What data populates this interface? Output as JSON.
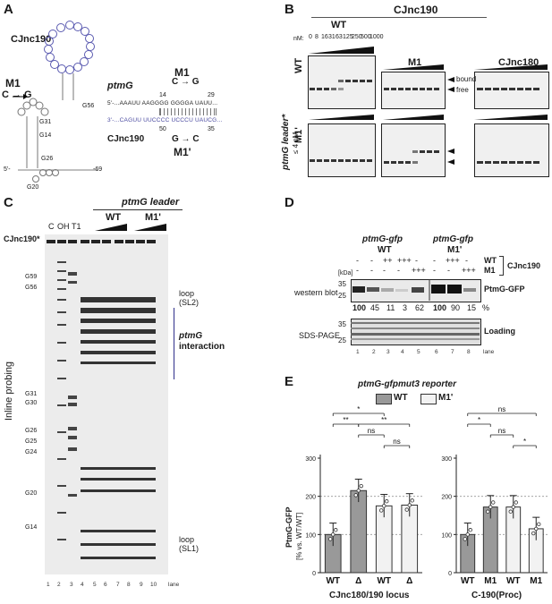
{
  "panel_a": {
    "letter": "A",
    "cjnc190_label": "CJnc190",
    "m1_label": "M1",
    "mut_arrow": "C → G",
    "g56": "G56",
    "g31": "G31",
    "g14": "G14",
    "g26": "G26",
    "g20": "G20",
    "five_prime": "5'-",
    "three_prime": "-69",
    "ptmg_label": "ptmG",
    "cjnc190_pair_label": "CJnc190",
    "ptmg_seq_top": "5'-...AAAUU AAGGGG GGGGA UAUU...",
    "cjnc190_seq_bottom": "3'-...CAGUU UUCCCC UCCCU UAUCG...",
    "pos14": "14",
    "pos29": "29",
    "pos50": "50",
    "pos35": "35",
    "m1_top": "M1",
    "m1_top_mut": "C → G",
    "m1p_bottom": "M1'",
    "m1p_bottom_mut": "G → C"
  },
  "panel_b": {
    "letter": "B",
    "title": "CJnc190",
    "wt_header": "WT",
    "m1_header": "M1",
    "cjnc180_header": "CJnc180",
    "nm_label": "nM:",
    "concentrations": [
      "0",
      "8",
      "16",
      "31",
      "63",
      "125",
      "250",
      "500",
      "1000"
    ],
    "row_wt": "WT",
    "row_m1p": "M1'",
    "side_label": "ptmG leader*",
    "side_label2": "≤ 4 nM",
    "bound": "bound",
    "free": "free"
  },
  "panel_c": {
    "letter": "C",
    "header": "ptmG leader",
    "wt": "WT",
    "m1p": "M1'",
    "probe": "CJnc190*",
    "lane_c": "C",
    "lane_oh": "OH",
    "lane_t1": "T1",
    "side": "Inline probing",
    "g59": "G59",
    "g56": "G56",
    "g31": "G31",
    "g30": "G30",
    "g26": "G26",
    "g25": "G25",
    "g24": "G24",
    "g20": "G20",
    "g14": "G14",
    "loop_sl2": "loop",
    "loop_sl2b": "(SL2)",
    "ptmg_int1": "ptmG",
    "ptmg_int2": "interaction",
    "loop_sl1": "loop",
    "loop_sl1b": "(SL1)",
    "lanes": [
      "1",
      "2",
      "3",
      "4",
      "5",
      "6",
      "7",
      "8",
      "9",
      "10"
    ],
    "lane_word": "lane"
  },
  "panel_d": {
    "letter": "D",
    "wt_title1": "ptmG-gfp",
    "wt_title2": "WT",
    "m1p_title1": "ptmG-gfp",
    "m1p_title2": "M1'",
    "kda": "[kDa]",
    "row_wt": [
      "-",
      "-",
      "++",
      "+++",
      "-",
      "-",
      "+++",
      "-"
    ],
    "row_m1": [
      "-",
      "-",
      "-",
      "-",
      "+++",
      "-",
      "-",
      "+++"
    ],
    "row_wt_label": "WT",
    "row_m1_label": "M1",
    "cjnc190": "CJnc190",
    "western": "western blot",
    "sdspage": "SDS-PAGE",
    "ptmg_gfp": "PtmG-GFP",
    "loading": "Loading",
    "kda_35": "35",
    "kda_25": "25",
    "kda_35b": "35",
    "kda_25b": "25",
    "percent": [
      "100",
      "45",
      "11",
      "3",
      "62",
      "100",
      "90",
      "15"
    ],
    "pct": "%",
    "lanes": [
      "1",
      "2",
      "3",
      "4",
      "5",
      "6",
      "7",
      "8"
    ],
    "lane_word": "lane"
  },
  "panel_e": {
    "letter": "E",
    "title": "ptmG-gfpmut3 reporter",
    "legend_wt": "WT",
    "legend_m1p": "M1'",
    "ylabel1": "PtmG-GFP",
    "ylabel2": "[% vs. WT/WT]",
    "yticks": [
      "0",
      "100",
      "200",
      "300"
    ],
    "left_xlabels": [
      "WT",
      "Δ",
      "WT",
      "Δ"
    ],
    "left_group": "CJnc180/190 locus",
    "right_xlabels": [
      "WT",
      "M1",
      "WT",
      "M1"
    ],
    "right_group": "C-190(Proc)",
    "sig_left": [
      "*",
      "**",
      "ns",
      "**",
      "ns"
    ],
    "sig_right": [
      "ns",
      "*",
      "ns",
      "*"
    ]
  },
  "chart_data": {
    "type": "bar",
    "title": "ptmG-gfpmut3 reporter",
    "ylabel": "PtmG-GFP [% vs. WT/WT]",
    "ylim": [
      0,
      300
    ],
    "groups": [
      {
        "name": "CJnc180/190 locus",
        "categories": [
          "WT",
          "Δ",
          "WT",
          "Δ"
        ],
        "reporter": [
          "WT",
          "WT",
          "M1'",
          "M1'"
        ],
        "values": [
          100,
          215,
          175,
          177
        ]
      },
      {
        "name": "C-190(Proc)",
        "categories": [
          "WT",
          "M1",
          "WT",
          "M1"
        ],
        "reporter": [
          "WT",
          "WT",
          "M1'",
          "M1'"
        ],
        "values": [
          100,
          172,
          172,
          115
        ]
      }
    ],
    "colors": {
      "WT": "#999999",
      "M1'": "#f2f2f2"
    }
  }
}
